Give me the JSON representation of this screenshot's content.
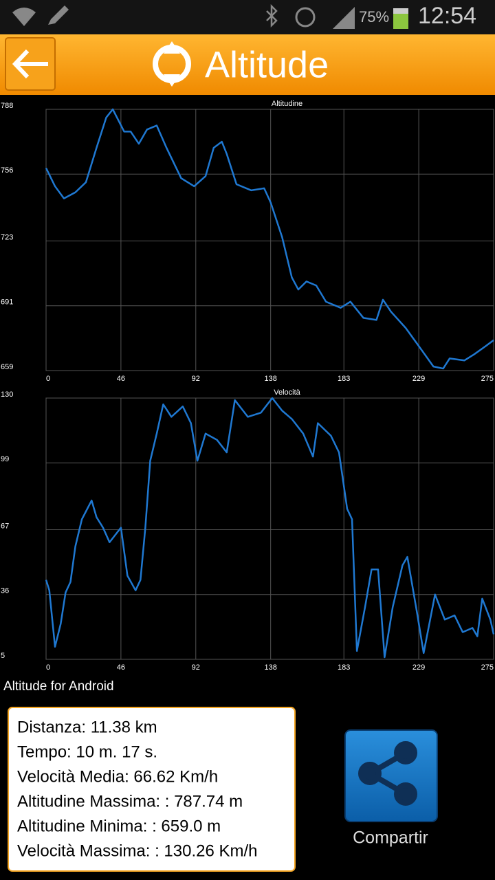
{
  "status_bar": {
    "battery": "75%",
    "time": "12:54"
  },
  "header": {
    "title": "Altitude"
  },
  "chart_data": [
    {
      "type": "line",
      "title": "Altitudine",
      "color": "#1f78d1",
      "grid": true,
      "x": [
        0,
        5.5,
        11,
        18,
        24.5,
        31,
        37,
        41,
        48,
        52,
        57,
        62,
        68,
        74,
        83,
        91,
        98,
        103,
        108,
        111,
        117,
        126,
        134,
        138,
        145,
        151,
        155,
        160,
        166,
        172,
        181,
        187,
        195,
        203,
        207,
        212,
        221,
        230,
        238,
        244,
        248,
        257,
        263,
        270,
        275
      ],
      "values": [
        759,
        750,
        744,
        747,
        752,
        769,
        784,
        788,
        777,
        777,
        771,
        778,
        780,
        769,
        754,
        750,
        755,
        769,
        772,
        766,
        751,
        748,
        749,
        742,
        725,
        705,
        699,
        703,
        701,
        693,
        690,
        693,
        685,
        684,
        694,
        688,
        680,
        670,
        661,
        660,
        665,
        664,
        667,
        671,
        674
      ],
      "xlim": [
        0,
        275
      ],
      "xticks": [
        0,
        46,
        92,
        138,
        183,
        229,
        275
      ],
      "ylim": [
        659,
        788
      ],
      "yticks": [
        659,
        691,
        723,
        756,
        788
      ]
    },
    {
      "type": "line",
      "title": "Velocità",
      "color": "#1f78d1",
      "grid": true,
      "x": [
        0,
        2,
        5.5,
        9,
        12,
        15,
        18,
        22,
        28,
        31,
        35,
        39,
        46,
        50,
        55,
        58,
        61,
        64,
        68,
        72,
        77,
        84,
        89,
        93,
        98,
        105,
        111,
        116,
        124,
        132,
        139,
        145,
        151,
        158,
        164,
        167,
        175,
        180,
        185,
        188,
        191,
        196,
        200,
        204,
        208,
        213,
        219,
        222,
        228,
        232,
        239,
        245,
        251,
        256,
        262,
        265,
        268,
        273,
        275
      ],
      "values": [
        43,
        38,
        11,
        22,
        37,
        42,
        59,
        72,
        81,
        73,
        68,
        61,
        68,
        45,
        38,
        43,
        68,
        100,
        113,
        127,
        121,
        126,
        118,
        100,
        113,
        110,
        104,
        129,
        121,
        123,
        130,
        124,
        120,
        113,
        102,
        118,
        112,
        104,
        77,
        72,
        9,
        30,
        48,
        48,
        6,
        30,
        50,
        54,
        27,
        8,
        36,
        24,
        26,
        18,
        20,
        16,
        34,
        24,
        17
      ],
      "xlim": [
        0,
        275
      ],
      "xticks": [
        0,
        46,
        92,
        138,
        183,
        229,
        275
      ],
      "ylim": [
        5,
        130
      ],
      "yticks": [
        5,
        36,
        67,
        99,
        130
      ]
    }
  ],
  "app_name": "Altitude for Android",
  "stats": [
    "Distanza: 11.38 km",
    "Tempo: 10 m. 17 s.",
    "Velocità Media: 66.62 Km/h",
    "Altitudine Massima:  : 787.74 m",
    "Altitudine Minima:  : 659.0 m",
    "Velocità Massima:  : 130.26 Km/h"
  ],
  "share_button": {
    "label": "Compartir"
  }
}
